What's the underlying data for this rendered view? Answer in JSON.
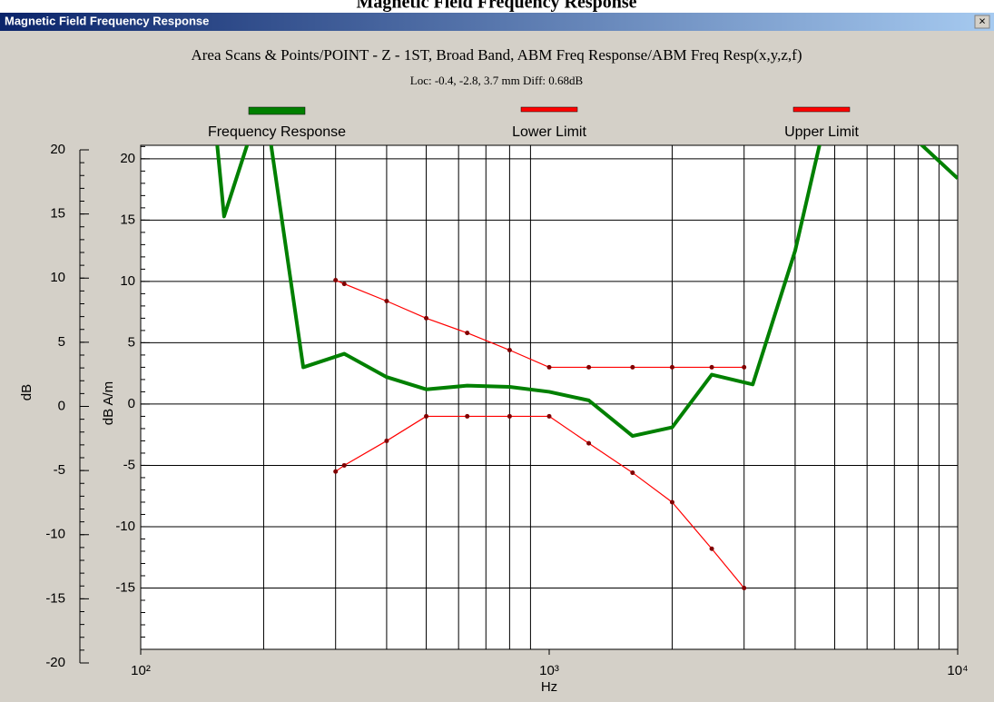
{
  "window": {
    "heading": "Magnetic Field Frequency Response",
    "title": "Magnetic Field Frequency Response",
    "close": "×"
  },
  "chart_data": {
    "type": "line",
    "title": "Area Scans & Points/POINT - Z - 1ST, Broad Band, ABM Freq Response/ABM Freq Resp(x,y,z,f)",
    "subtitle": "Loc: -0.4, -2.8, 3.7 mm Diff: 0.68dB",
    "x_label": "Hz",
    "y_label": "dB A/m",
    "y2_label": "dB",
    "log_x": true,
    "grid": true,
    "legend": "top",
    "xlim": [
      100,
      10000
    ],
    "xticks": [
      {
        "value": 100,
        "label": "10²"
      },
      {
        "value": 1000,
        "label": "10³"
      },
      {
        "value": 10000,
        "label": "10⁴"
      }
    ],
    "ylim": [
      -20,
      21.1
    ],
    "yticks": [
      -15,
      -10,
      -5,
      0,
      5,
      10,
      15,
      20
    ],
    "y2lim": [
      -20,
      20
    ],
    "y2ticks": [
      -20,
      -15,
      -10,
      -5,
      0,
      5,
      10,
      15,
      20
    ],
    "series": [
      {
        "name": "Frequency Response",
        "color": "#008000",
        "x": [
          150,
          160,
          200,
          250,
          315,
          400,
          500,
          630,
          800,
          1000,
          1250,
          1600,
          2000,
          2500,
          3150,
          4000,
          5000,
          6300,
          8000,
          10000
        ],
        "values": [
          25,
          15.3,
          25.3,
          3.0,
          4.1,
          2.2,
          1.2,
          1.5,
          1.4,
          1.0,
          0.3,
          -2.6,
          -1.9,
          2.4,
          1.6,
          12.5,
          26.5,
          25,
          21.4,
          18.4
        ]
      },
      {
        "name": "Lower Limit",
        "color": "#ff0000",
        "x": [
          300,
          315,
          400,
          500,
          630,
          800,
          1000,
          1250,
          1600,
          2000,
          2500,
          3000
        ],
        "values": [
          -5.5,
          -5.0,
          -3.0,
          -1.0,
          -1.0,
          -1.0,
          -1.0,
          -3.2,
          -5.6,
          -8.0,
          -11.8,
          -15
        ]
      },
      {
        "name": "Upper Limit",
        "color": "#ff0000",
        "x": [
          300,
          315,
          400,
          500,
          630,
          800,
          1000,
          1250,
          1600,
          2000,
          2500,
          3000
        ],
        "values": [
          10.1,
          9.8,
          8.4,
          7.0,
          5.8,
          4.4,
          3.0,
          3.0,
          3.0,
          3.0,
          3.0,
          3.0
        ]
      }
    ]
  }
}
